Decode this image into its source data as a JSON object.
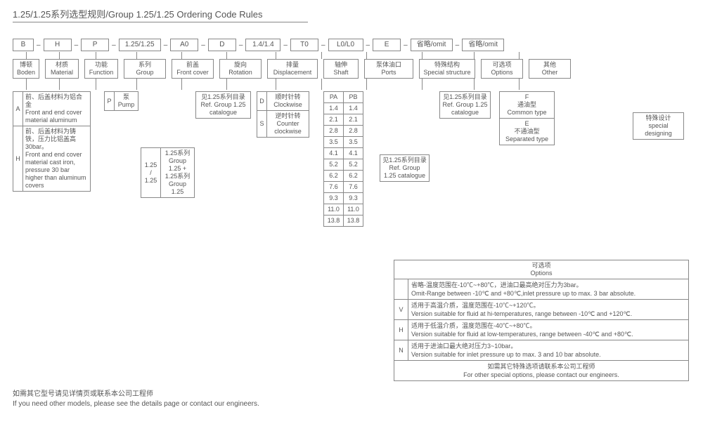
{
  "title": "1.25/1.25系列选型规则/Group 1.25/1.25 Ordering Code Rules",
  "code": [
    "B",
    "H",
    "P",
    "1.25/1.25",
    "A0",
    "D",
    "1.4/1.4",
    "T0",
    "L0/L0",
    "E",
    "省略/omit",
    "省略/omit"
  ],
  "code_widths": [
    30,
    40,
    40,
    60,
    40,
    40,
    50,
    40,
    50,
    40,
    60,
    60
  ],
  "headers": [
    {
      "cn": "博顿",
      "en": "Boden"
    },
    {
      "cn": "材质",
      "en": "Material"
    },
    {
      "cn": "功能",
      "en": "Function"
    },
    {
      "cn": "系列",
      "en": "Group"
    },
    {
      "cn": "前盖",
      "en": "Front cover"
    },
    {
      "cn": "旋向",
      "en": "Rotation"
    },
    {
      "cn": "排量",
      "en": "Displacement"
    },
    {
      "cn": "轴伸",
      "en": "Shaft"
    },
    {
      "cn": "泵体油口",
      "en": "Ports"
    },
    {
      "cn": "特殊结构",
      "en": "Special structure"
    },
    {
      "cn": "可选项",
      "en": "Options"
    },
    {
      "cn": "其他",
      "en": "Other"
    }
  ],
  "header_widths": [
    38,
    48,
    48,
    60,
    60,
    60,
    72,
    50,
    70,
    80,
    60,
    60
  ],
  "material": [
    {
      "k": "A",
      "cn": "前、后盖材料为铝合金",
      "en": "Front and end cover material aluminum"
    },
    {
      "k": "H",
      "cn": "前、后盖材料为铸铁，压力比铝盖高 30bar。",
      "en": "Front and end cover material cast iron, pressure 30 bar higher than aluminum covers"
    }
  ],
  "function": [
    {
      "k": "P",
      "cn": "泵",
      "en": "Pump"
    }
  ],
  "group": [
    {
      "k": "1.25 / 1.25",
      "cn": "1.25系列",
      "en": "Group 1.25 + 1.25系列 Group 1.25"
    }
  ],
  "frontcover": {
    "cn": "见1.25系列目录",
    "en": "Ref. Group 1.25 catalogue"
  },
  "rotation": [
    {
      "k": "D",
      "cn": "顺时针转",
      "en": "Clockwise"
    },
    {
      "k": "S",
      "cn": "逆时针转",
      "en": "Counter clockwise"
    }
  ],
  "disp_header": [
    "PA",
    "PB"
  ],
  "disp": [
    [
      "1.4",
      "1.4"
    ],
    [
      "2.1",
      "2.1"
    ],
    [
      "2.8",
      "2.8"
    ],
    [
      "3.5",
      "3.5"
    ],
    [
      "4.1",
      "4.1"
    ],
    [
      "5.2",
      "5.2"
    ],
    [
      "6.2",
      "6.2"
    ],
    [
      "7.6",
      "7.6"
    ],
    [
      "9.3",
      "9.3"
    ],
    [
      "11.0",
      "11.0"
    ],
    [
      "13.8",
      "13.8"
    ]
  ],
  "shaft": {
    "cn": "见1.25系列目录",
    "en": "Ref. Group 1.25 catalogue"
  },
  "ports": {
    "cn": "见1.25系列目录",
    "en": "Ref. Group 1.25 catalogue"
  },
  "struct": [
    {
      "k": "F",
      "cn": "通油型",
      "en": "Common type"
    },
    {
      "k": "E",
      "cn": "不通油型",
      "en": "Separated type"
    }
  ],
  "other": [
    {
      "cn": "特殊设计",
      "en": "special designing"
    }
  ],
  "options_header": {
    "cn": "可选项",
    "en": "Options"
  },
  "options": [
    {
      "k": "",
      "cn": "省略-温度范围在-10℃~+80℃，进油口最高绝对压力为3bar。",
      "en": "Omit-Range between -10℃ and +80℃,inlet pressure up to max. 3 bar absolute."
    },
    {
      "k": "V",
      "cn": "适用于高温介质，温度范围在-10℃~+120℃。",
      "en": "Version suitable for fluid at hi-temperatures, range between -10℃ and +120℃."
    },
    {
      "k": "H",
      "cn": "适用于低温介质，温度范围在-40℃~+80℃。",
      "en": "Version suitable for fluid at low-temperatures, range between -40℃ and +80℃."
    },
    {
      "k": "N",
      "cn": "适用于进油口最大绝对压力3~10bar。",
      "en": "Version suitable for inlet pressure up to max. 3 and 10 bar absolute."
    }
  ],
  "options_footer": {
    "cn": "如需其它特殊选项请联系本公司工程师",
    "en": "For other special options, please contact our engineers."
  },
  "footnote": {
    "cn": "如需其它型号请见详情页或联系本公司工程师",
    "en": "If you need other models, please see the details page or contact our engineers."
  }
}
